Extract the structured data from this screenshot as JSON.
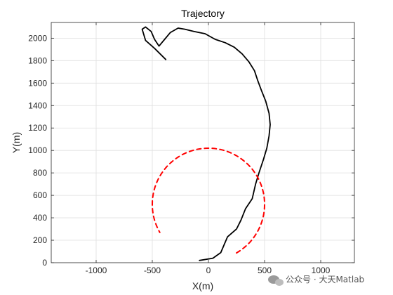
{
  "chart_data": {
    "type": "line",
    "title": "Trajectory",
    "xlabel": "X(m)",
    "ylabel": "Y(m)",
    "xlim": [
      -1400,
      1300
    ],
    "ylim": [
      0,
      2140
    ],
    "xticks": [
      -1000,
      -500,
      0,
      500,
      1000
    ],
    "yticks": [
      0,
      200,
      400,
      600,
      800,
      1000,
      1200,
      1400,
      1600,
      1800,
      2000
    ],
    "grid": true,
    "legend": "none",
    "series": [
      {
        "style": "solid",
        "color": "#000000",
        "points": [
          [
            -80,
            20
          ],
          [
            40,
            40
          ],
          [
            110,
            90
          ],
          [
            140,
            160
          ],
          [
            170,
            230
          ],
          [
            250,
            300
          ],
          [
            290,
            380
          ],
          [
            330,
            480
          ],
          [
            390,
            570
          ],
          [
            420,
            700
          ],
          [
            450,
            800
          ],
          [
            490,
            920
          ],
          [
            520,
            1020
          ],
          [
            540,
            1130
          ],
          [
            550,
            1230
          ],
          [
            540,
            1330
          ],
          [
            510,
            1440
          ],
          [
            470,
            1540
          ],
          [
            440,
            1620
          ],
          [
            410,
            1710
          ],
          [
            360,
            1790
          ],
          [
            300,
            1860
          ],
          [
            230,
            1920
          ],
          [
            150,
            1960
          ],
          [
            60,
            1990
          ],
          [
            -30,
            2040
          ],
          [
            -130,
            2060
          ],
          [
            -210,
            2080
          ],
          [
            -270,
            2090
          ],
          [
            -340,
            2050
          ],
          [
            -390,
            1990
          ],
          [
            -440,
            1930
          ],
          [
            -480,
            1990
          ],
          [
            -510,
            2060
          ],
          [
            -560,
            2100
          ],
          [
            -590,
            2080
          ],
          [
            -560,
            1980
          ],
          [
            -480,
            1910
          ],
          [
            -380,
            1810
          ]
        ]
      },
      {
        "style": "dashed",
        "color": "#ff0000",
        "shape": "circle",
        "center": [
          0,
          520
        ],
        "radius": 500,
        "arc_degrees": [
          -60,
          210
        ]
      }
    ]
  },
  "watermark": {
    "text": "公众号 · 大天Matlab"
  }
}
